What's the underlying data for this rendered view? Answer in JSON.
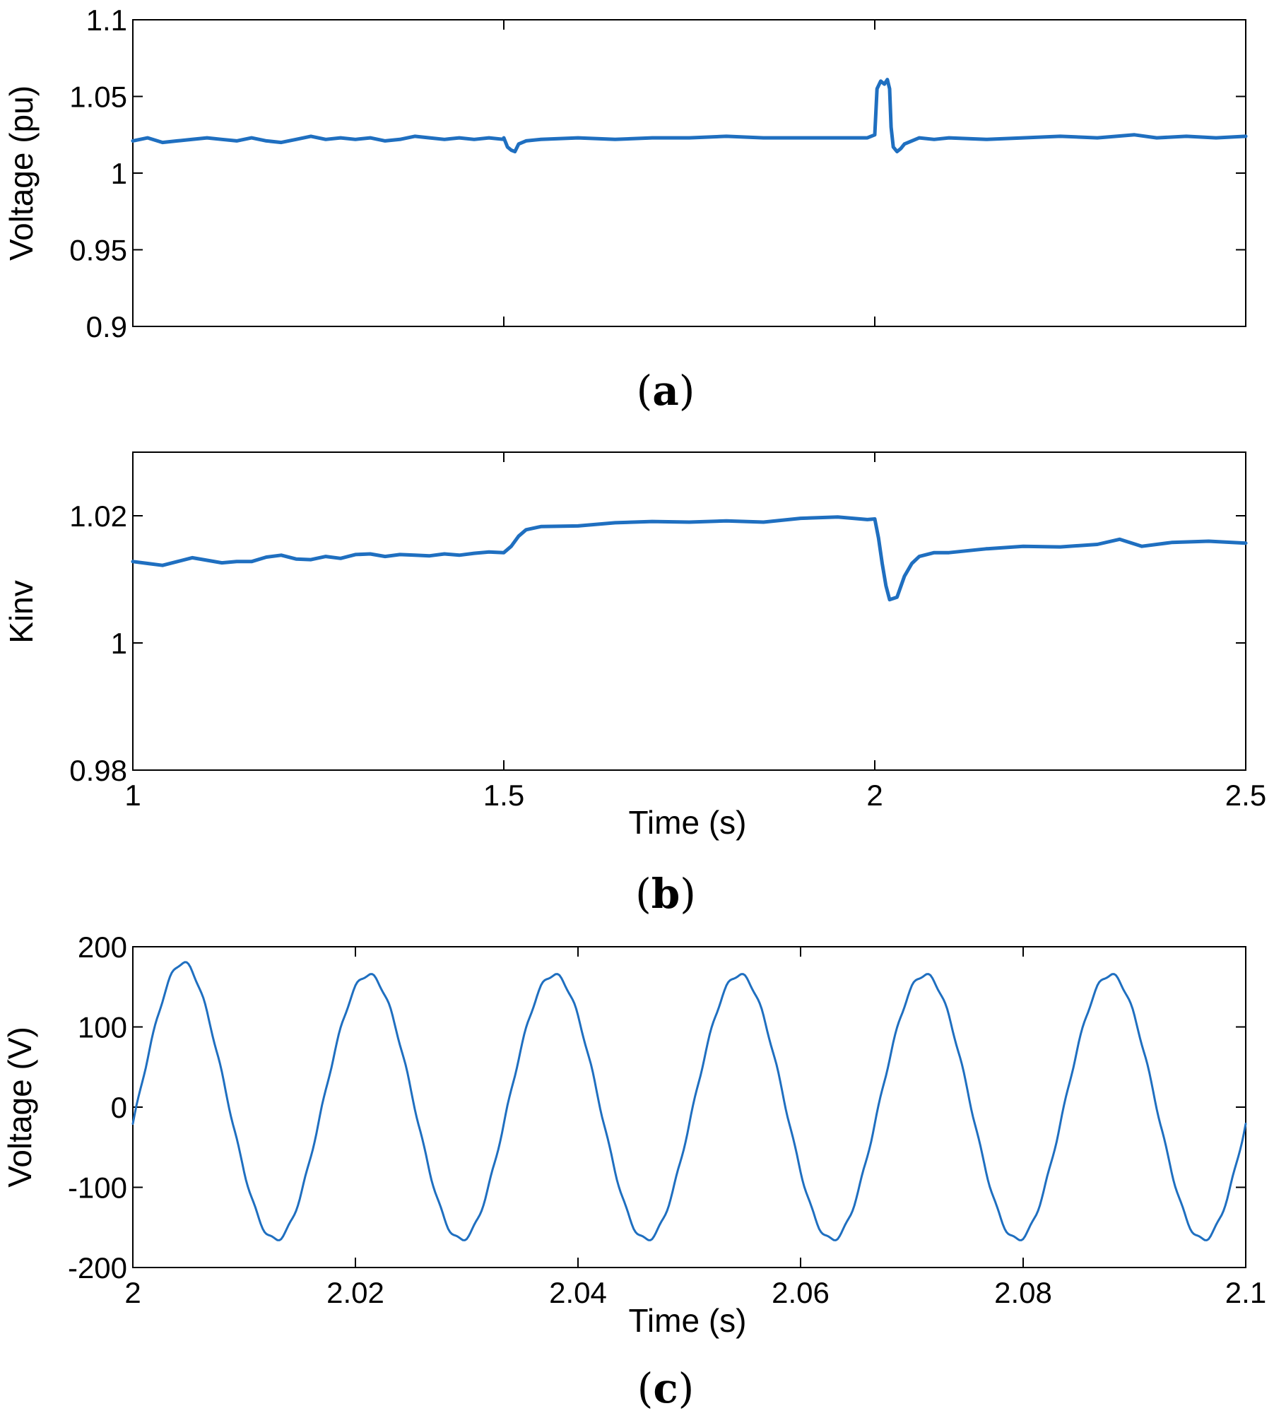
{
  "chart_data": [
    {
      "id": "a",
      "type": "line",
      "panel_label": "a",
      "xlabel": "",
      "ylabel": "Voltage (pu)",
      "xlim": [
        1,
        2.5
      ],
      "ylim": [
        0.9,
        1.1
      ],
      "x_ticks": [
        1,
        1.5,
        2,
        2.5
      ],
      "x_tick_labels": [],
      "y_ticks": [
        0.9,
        0.95,
        1,
        1.05,
        1.1
      ],
      "y_tick_labels": [
        "0.9",
        "0.95",
        "1",
        "1.05",
        "1.1"
      ],
      "series": [
        {
          "name": "Voltage",
          "color": "#1f6fc0",
          "points": [
            [
              1.0,
              1.021
            ],
            [
              1.02,
              1.023
            ],
            [
              1.04,
              1.02
            ],
            [
              1.06,
              1.021
            ],
            [
              1.08,
              1.022
            ],
            [
              1.1,
              1.023
            ],
            [
              1.12,
              1.022
            ],
            [
              1.14,
              1.021
            ],
            [
              1.16,
              1.023
            ],
            [
              1.18,
              1.021
            ],
            [
              1.2,
              1.02
            ],
            [
              1.22,
              1.022
            ],
            [
              1.24,
              1.024
            ],
            [
              1.26,
              1.022
            ],
            [
              1.28,
              1.023
            ],
            [
              1.3,
              1.022
            ],
            [
              1.32,
              1.023
            ],
            [
              1.34,
              1.021
            ],
            [
              1.36,
              1.022
            ],
            [
              1.38,
              1.024
            ],
            [
              1.4,
              1.023
            ],
            [
              1.42,
              1.022
            ],
            [
              1.44,
              1.023
            ],
            [
              1.46,
              1.022
            ],
            [
              1.48,
              1.023
            ],
            [
              1.5,
              1.022
            ],
            [
              1.5,
              1.023
            ],
            [
              1.505,
              1.017
            ],
            [
              1.51,
              1.015
            ],
            [
              1.515,
              1.014
            ],
            [
              1.52,
              1.019
            ],
            [
              1.53,
              1.021
            ],
            [
              1.55,
              1.022
            ],
            [
              1.6,
              1.023
            ],
            [
              1.65,
              1.022
            ],
            [
              1.7,
              1.023
            ],
            [
              1.75,
              1.023
            ],
            [
              1.8,
              1.024
            ],
            [
              1.85,
              1.023
            ],
            [
              1.9,
              1.023
            ],
            [
              1.95,
              1.023
            ],
            [
              1.99,
              1.023
            ],
            [
              2.0,
              1.025
            ],
            [
              2.003,
              1.055
            ],
            [
              2.008,
              1.06
            ],
            [
              2.013,
              1.058
            ],
            [
              2.017,
              1.061
            ],
            [
              2.02,
              1.055
            ],
            [
              2.022,
              1.03
            ],
            [
              2.025,
              1.017
            ],
            [
              2.03,
              1.014
            ],
            [
              2.035,
              1.016
            ],
            [
              2.04,
              1.019
            ],
            [
              2.05,
              1.021
            ],
            [
              2.06,
              1.023
            ],
            [
              2.08,
              1.022
            ],
            [
              2.1,
              1.023
            ],
            [
              2.15,
              1.022
            ],
            [
              2.2,
              1.023
            ],
            [
              2.25,
              1.024
            ],
            [
              2.3,
              1.023
            ],
            [
              2.35,
              1.025
            ],
            [
              2.38,
              1.023
            ],
            [
              2.42,
              1.024
            ],
            [
              2.46,
              1.023
            ],
            [
              2.5,
              1.024
            ]
          ]
        }
      ]
    },
    {
      "id": "b",
      "type": "line",
      "panel_label": "b",
      "xlabel": "Time (s)",
      "ylabel": "Kinv",
      "xlim": [
        1,
        2.5
      ],
      "ylim": [
        0.98,
        1.03
      ],
      "x_ticks": [
        1,
        1.5,
        2,
        2.5
      ],
      "x_tick_labels": [
        "1",
        "1.5",
        "2",
        "2.5"
      ],
      "y_ticks": [
        0.98,
        1,
        1.02
      ],
      "y_tick_labels": [
        "0.98",
        "1",
        "1.02"
      ],
      "series": [
        {
          "name": "Kinv",
          "color": "#1f6fc0",
          "points": [
            [
              1.0,
              1.0128
            ],
            [
              1.02,
              1.0125
            ],
            [
              1.04,
              1.0122
            ],
            [
              1.06,
              1.0128
            ],
            [
              1.08,
              1.0134
            ],
            [
              1.1,
              1.013
            ],
            [
              1.12,
              1.0126
            ],
            [
              1.14,
              1.0128
            ],
            [
              1.16,
              1.0128
            ],
            [
              1.18,
              1.0135
            ],
            [
              1.2,
              1.0138
            ],
            [
              1.22,
              1.0132
            ],
            [
              1.24,
              1.0131
            ],
            [
              1.26,
              1.0136
            ],
            [
              1.28,
              1.0133
            ],
            [
              1.3,
              1.0139
            ],
            [
              1.32,
              1.014
            ],
            [
              1.34,
              1.0136
            ],
            [
              1.36,
              1.0139
            ],
            [
              1.38,
              1.0138
            ],
            [
              1.4,
              1.0137
            ],
            [
              1.42,
              1.014
            ],
            [
              1.44,
              1.0138
            ],
            [
              1.46,
              1.0141
            ],
            [
              1.48,
              1.0143
            ],
            [
              1.5,
              1.0142
            ],
            [
              1.51,
              1.0152
            ],
            [
              1.52,
              1.0168
            ],
            [
              1.53,
              1.0178
            ],
            [
              1.55,
              1.0183
            ],
            [
              1.6,
              1.0184
            ],
            [
              1.65,
              1.0189
            ],
            [
              1.7,
              1.0191
            ],
            [
              1.75,
              1.019
            ],
            [
              1.8,
              1.0192
            ],
            [
              1.85,
              1.019
            ],
            [
              1.9,
              1.0196
            ],
            [
              1.95,
              1.0198
            ],
            [
              1.99,
              1.0194
            ],
            [
              2.0,
              1.0195
            ],
            [
              2.005,
              1.0165
            ],
            [
              2.01,
              1.0125
            ],
            [
              2.015,
              1.009
            ],
            [
              2.02,
              1.0068
            ],
            [
              2.03,
              1.0072
            ],
            [
              2.04,
              1.0105
            ],
            [
              2.05,
              1.0125
            ],
            [
              2.06,
              1.0136
            ],
            [
              2.08,
              1.0142
            ],
            [
              2.1,
              1.0142
            ],
            [
              2.15,
              1.0148
            ],
            [
              2.2,
              1.0152
            ],
            [
              2.25,
              1.0151
            ],
            [
              2.3,
              1.0155
            ],
            [
              2.33,
              1.0163
            ],
            [
              2.36,
              1.0152
            ],
            [
              2.4,
              1.0158
            ],
            [
              2.45,
              1.016
            ],
            [
              2.5,
              1.0157
            ]
          ]
        }
      ]
    },
    {
      "id": "c",
      "type": "line",
      "panel_label": "c",
      "xlabel": "Time (s)",
      "ylabel": "Voltage (V)",
      "xlim": [
        2,
        2.1
      ],
      "ylim": [
        -200,
        200
      ],
      "x_ticks": [
        2,
        2.02,
        2.04,
        2.06,
        2.08,
        2.1
      ],
      "x_tick_labels": [
        "2",
        "2.02",
        "2.04",
        "2.06",
        "2.08",
        "2.1"
      ],
      "y_ticks": [
        -200,
        -100,
        0,
        100,
        200
      ],
      "y_tick_labels": [
        "-200",
        "-100",
        "0",
        "100",
        "200"
      ],
      "series": [
        {
          "name": "Voltage",
          "color": "#1f6fc0",
          "waveform": {
            "kind": "sine",
            "start": 2,
            "end": 2.1,
            "frequency_hz": 60,
            "amplitude": 165,
            "first_peak_amplitude": 180,
            "first_peak_time": 2.0045,
            "samples": 600
          }
        }
      ]
    }
  ]
}
